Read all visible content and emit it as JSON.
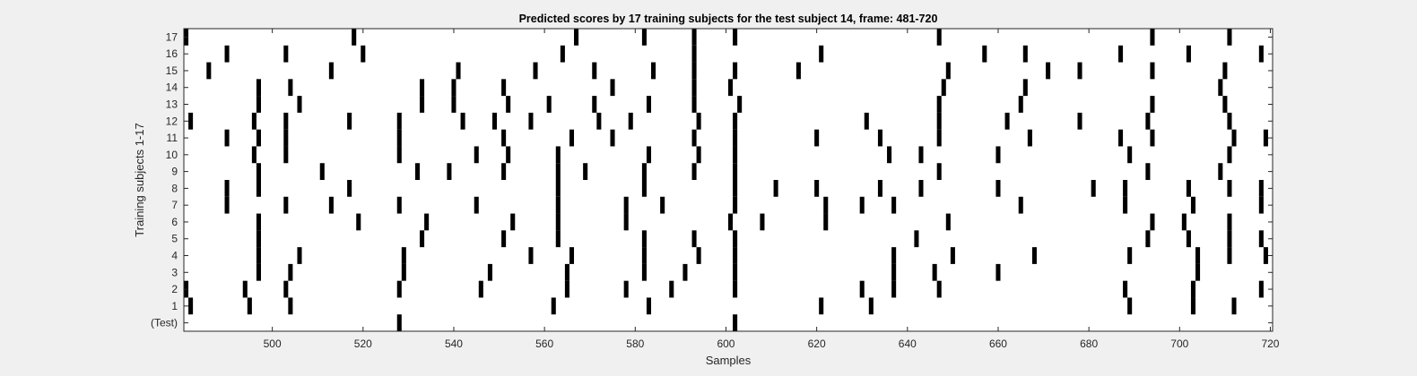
{
  "chart_data": {
    "type": "heatmap",
    "title": "Predicted scores by 17 training subjects for the test subject 14, frame: 481-720",
    "xlabel": "Samples",
    "ylabel": "Training subjects 1-17",
    "xlim": [
      481,
      720
    ],
    "x_ticks": [
      500,
      520,
      540,
      560,
      580,
      600,
      620,
      640,
      660,
      680,
      700,
      720
    ],
    "rows": [
      "(Test)",
      "1",
      "2",
      "3",
      "4",
      "5",
      "6",
      "7",
      "8",
      "9",
      "10",
      "11",
      "12",
      "13",
      "14",
      "15",
      "16",
      "17"
    ],
    "mark_color": "#000000",
    "background_color": "#ffffff",
    "grid": false,
    "marked_samples": [
      {
        "row": "(Test)",
        "x": [
          528,
          602
        ]
      },
      {
        "row": "1",
        "x": [
          482,
          495,
          504,
          562,
          583,
          621,
          632,
          689,
          703,
          712
        ]
      },
      {
        "row": "2",
        "x": [
          481,
          494,
          503,
          528,
          546,
          565,
          578,
          588,
          602,
          630,
          637,
          647,
          688,
          703,
          718
        ]
      },
      {
        "row": "3",
        "x": [
          497,
          504,
          529,
          548,
          565,
          582,
          591,
          602,
          637,
          646,
          660,
          704
        ]
      },
      {
        "row": "4",
        "x": [
          497,
          506,
          529,
          557,
          566,
          582,
          594,
          602,
          637,
          650,
          668,
          689,
          704,
          711,
          719
        ]
      },
      {
        "row": "5",
        "x": [
          497,
          533,
          551,
          563,
          582,
          593,
          602,
          642,
          693,
          702,
          711,
          718
        ]
      },
      {
        "row": "6",
        "x": [
          497,
          519,
          534,
          553,
          563,
          578,
          601,
          608,
          622,
          649,
          694,
          701,
          711
        ]
      },
      {
        "row": "7",
        "x": [
          490,
          503,
          513,
          528,
          545,
          563,
          578,
          586,
          602,
          622,
          630,
          637,
          665,
          688,
          703,
          718
        ]
      },
      {
        "row": "8",
        "x": [
          490,
          497,
          517,
          563,
          582,
          602,
          611,
          620,
          634,
          643,
          660,
          681,
          688,
          702,
          711,
          718
        ]
      },
      {
        "row": "9",
        "x": [
          497,
          511,
          532,
          539,
          551,
          563,
          569,
          582,
          593,
          602,
          647,
          693,
          709
        ]
      },
      {
        "row": "10",
        "x": [
          496,
          503,
          528,
          545,
          552,
          563,
          583,
          594,
          602,
          636,
          643,
          660,
          689,
          711
        ]
      },
      {
        "row": "11",
        "x": [
          490,
          497,
          503,
          528,
          551,
          566,
          575,
          593,
          602,
          620,
          634,
          647,
          667,
          687,
          694,
          712,
          719
        ]
      },
      {
        "row": "12",
        "x": [
          482,
          496,
          503,
          517,
          528,
          542,
          549,
          557,
          572,
          579,
          594,
          602,
          631,
          647,
          662,
          678,
          693,
          711
        ]
      },
      {
        "row": "13",
        "x": [
          497,
          506,
          533,
          540,
          552,
          561,
          571,
          583,
          593,
          603,
          647,
          665,
          694,
          710
        ]
      },
      {
        "row": "14",
        "x": [
          497,
          504,
          533,
          540,
          551,
          575,
          593,
          601,
          648,
          666,
          709
        ]
      },
      {
        "row": "15",
        "x": [
          486,
          513,
          541,
          558,
          571,
          584,
          593,
          602,
          616,
          649,
          671,
          678,
          694,
          710
        ]
      },
      {
        "row": "16",
        "x": [
          490,
          503,
          520,
          564,
          593,
          621,
          657,
          666,
          687,
          702,
          718
        ]
      },
      {
        "row": "17",
        "x": [
          481,
          518,
          567,
          582,
          593,
          602,
          647,
          694,
          711
        ]
      }
    ]
  }
}
